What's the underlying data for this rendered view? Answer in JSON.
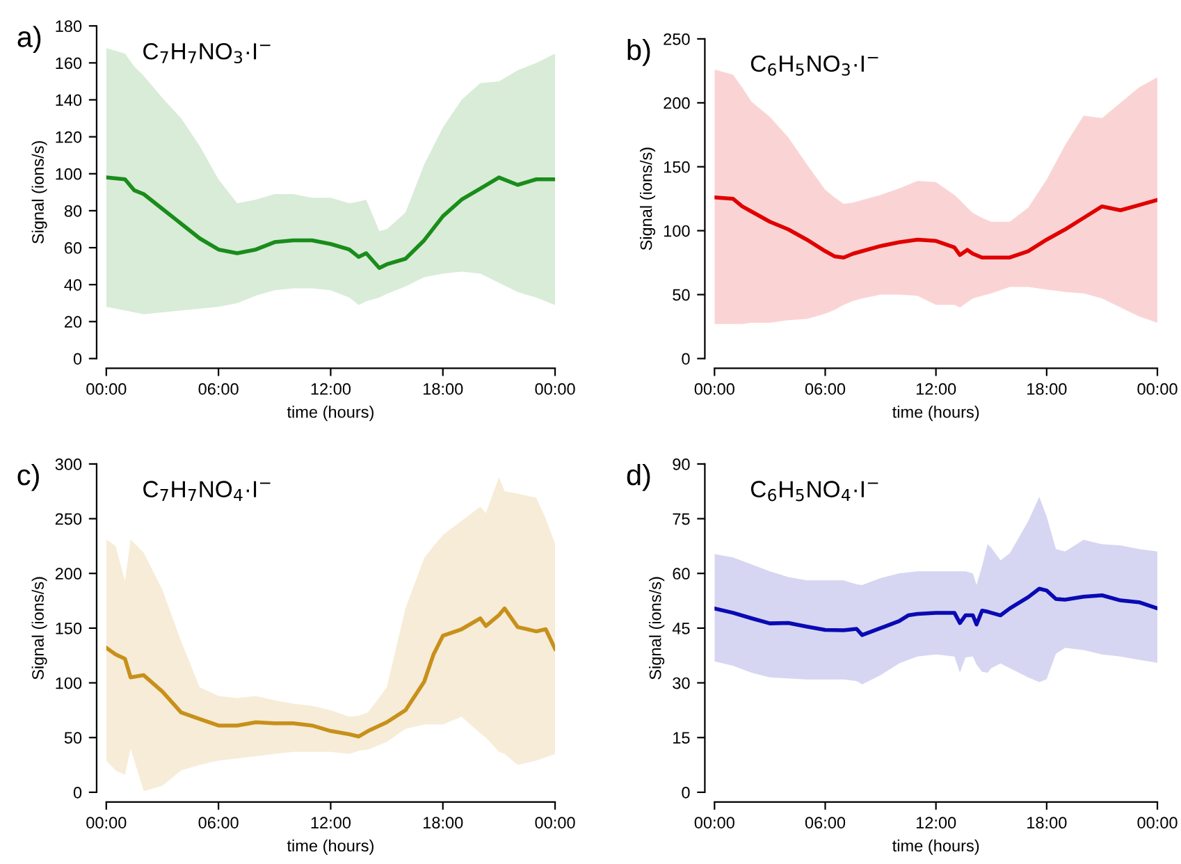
{
  "chart_data": [
    {
      "type": "line",
      "title": "C$_{7}$H$_{7}$NO$_{3}$·I$^{−}$",
      "xlabel": "time (hours)",
      "ylabel": "Signal (ions/s)",
      "annotations": [
        "a)"
      ],
      "x": [
        0,
        1,
        1.5,
        2,
        3,
        4,
        5,
        6,
        7,
        8,
        9,
        10,
        11,
        12,
        13,
        13.5,
        13.9,
        14.6,
        15,
        16,
        17,
        18,
        19,
        20,
        21,
        22,
        23,
        24
      ],
      "series": [
        {
          "color": "#1a8c1a",
          "values": [
            98,
            97,
            91,
            89,
            81,
            73,
            65,
            59,
            57,
            59,
            63,
            64,
            64,
            62,
            59,
            55,
            57,
            49,
            51,
            54,
            64,
            77,
            86,
            92,
            98,
            94,
            97,
            97
          ],
          "upper": [
            168,
            165,
            158,
            153,
            141,
            130,
            115,
            97,
            84,
            86,
            89,
            89,
            87,
            87,
            84,
            85,
            86,
            69,
            70,
            79,
            105,
            125,
            140,
            149,
            150,
            156,
            160,
            165
          ],
          "lower": [
            28,
            26,
            25,
            24,
            25,
            26,
            27,
            28,
            30,
            34,
            37,
            38,
            38,
            37,
            33,
            29,
            31,
            33,
            35,
            39,
            44,
            46,
            47,
            46,
            41,
            36,
            33,
            29
          ]
        }
      ],
      "xlim": [
        0,
        24
      ],
      "xticks": [
        {
          "value": 0,
          "label": "00:00"
        },
        {
          "value": 6,
          "label": "06:00"
        },
        {
          "value": 12,
          "label": "12:00"
        },
        {
          "value": 18,
          "label": "18:00"
        },
        {
          "value": 24,
          "label": "00:00"
        }
      ],
      "ylim": [
        0,
        180
      ],
      "yticks": [
        0,
        20,
        40,
        60,
        80,
        100,
        120,
        140,
        160,
        180
      ],
      "grid": false
    },
    {
      "type": "line",
      "title": "C$_{6}$H$_{5}$NO$_{3}$·I$^{−}$",
      "xlabel": "time (hours)",
      "ylabel": "Signal (ions/s)",
      "annotations": [
        "b)"
      ],
      "x": [
        0,
        1,
        1.5,
        2,
        3,
        4,
        5,
        6,
        6.5,
        7,
        7.5,
        8,
        9,
        10,
        11,
        12,
        13,
        13.3,
        13.7,
        14,
        14.5,
        15,
        16,
        17,
        18,
        19,
        20,
        21,
        22,
        23,
        24
      ],
      "series": [
        {
          "color": "#e00000",
          "values": [
            126,
            125,
            119,
            115,
            107,
            101,
            93,
            84,
            80,
            79,
            82,
            84,
            88,
            91,
            93,
            92,
            87,
            81,
            85,
            82,
            79,
            79,
            79,
            84,
            93,
            101,
            110,
            119,
            116,
            120,
            124
          ],
          "upper": [
            226,
            222,
            212,
            201,
            189,
            173,
            152,
            132,
            126,
            121,
            122,
            124,
            128,
            133,
            139,
            138,
            128,
            124,
            118,
            114,
            110,
            107,
            107,
            118,
            140,
            167,
            190,
            188,
            200,
            212,
            220
          ],
          "lower": [
            27,
            27,
            27,
            28,
            28,
            30,
            31,
            35,
            38,
            42,
            45,
            47,
            50,
            50,
            49,
            42,
            42,
            40,
            44,
            47,
            49,
            51,
            56,
            56,
            54,
            52,
            51,
            47,
            40,
            33,
            28
          ]
        }
      ],
      "xlim": [
        0,
        24
      ],
      "xticks": [
        {
          "value": 0,
          "label": "00:00"
        },
        {
          "value": 6,
          "label": "06:00"
        },
        {
          "value": 12,
          "label": "12:00"
        },
        {
          "value": 18,
          "label": "18:00"
        },
        {
          "value": 24,
          "label": "00:00"
        }
      ],
      "ylim": [
        0,
        250
      ],
      "yticks": [
        0,
        50,
        100,
        150,
        200,
        250
      ],
      "grid": false
    },
    {
      "type": "line",
      "title": "C$_{7}$H$_{7}$NO$_{4}$·I$^{−}$",
      "xlabel": "time (hours)",
      "ylabel": "Signal (ions/s)",
      "annotations": [
        "c)"
      ],
      "x": [
        0,
        0.5,
        1,
        1.3,
        2,
        3,
        4,
        5,
        6,
        7,
        8,
        9,
        10,
        11,
        12,
        13,
        13.5,
        14,
        15,
        16,
        17,
        17.5,
        18,
        19,
        20,
        20.3,
        21,
        21.3,
        22,
        23,
        23.5,
        24
      ],
      "series": [
        {
          "color": "#c8901a",
          "values": [
            132,
            126,
            122,
            105,
            107,
            92,
            73,
            67,
            61,
            61,
            64,
            63,
            63,
            61,
            56,
            53,
            51,
            56,
            64,
            75,
            101,
            126,
            143,
            149,
            159,
            152,
            162,
            168,
            151,
            147,
            149,
            131
          ],
          "upper": [
            231,
            225,
            193,
            231,
            219,
            185,
            138,
            96,
            88,
            86,
            88,
            84,
            81,
            79,
            75,
            69,
            70,
            73,
            96,
            168,
            214,
            225,
            235,
            248,
            261,
            255,
            288,
            275,
            273,
            269,
            250,
            227
          ],
          "lower": [
            29,
            20,
            16,
            40,
            1,
            6,
            20,
            25,
            29,
            31,
            33,
            35,
            37,
            37,
            37,
            35,
            38,
            39,
            46,
            58,
            62,
            62,
            62,
            69,
            54,
            50,
            37,
            35,
            25,
            29,
            32,
            35
          ]
        }
      ],
      "xlim": [
        0,
        24
      ],
      "xticks": [
        {
          "value": 0,
          "label": "00:00"
        },
        {
          "value": 6,
          "label": "06:00"
        },
        {
          "value": 12,
          "label": "12:00"
        },
        {
          "value": 18,
          "label": "18:00"
        },
        {
          "value": 24,
          "label": "00:00"
        }
      ],
      "ylim": [
        0,
        300
      ],
      "yticks": [
        0,
        50,
        100,
        150,
        200,
        250,
        300
      ],
      "grid": false
    },
    {
      "type": "line",
      "title": "C$_{6}$H$_{5}$NO$_{4}$·I$^{−}$",
      "xlabel": "time (hours)",
      "ylabel": "Signal (ions/s)",
      "annotations": [
        "d)"
      ],
      "x": [
        0,
        1,
        2,
        3,
        4,
        5,
        6,
        7,
        7.7,
        8,
        9,
        10,
        10.5,
        11,
        12,
        13,
        13.3,
        13.6,
        14,
        14.2,
        14.5,
        14.8,
        15,
        15.5,
        16,
        17,
        17.6,
        18,
        18.5,
        19,
        20,
        21,
        22,
        23,
        24
      ],
      "series": [
        {
          "color": "#0a0ab4",
          "values": [
            50.4,
            49.2,
            47.7,
            46.3,
            46.4,
            45.4,
            44.5,
            44.4,
            44.8,
            43.1,
            45,
            46.9,
            48.5,
            48.9,
            49.2,
            49.2,
            46.4,
            48.5,
            48.5,
            46,
            49.8,
            49.5,
            49.2,
            48.5,
            50.4,
            53.5,
            55.8,
            55.3,
            53,
            52.8,
            53.6,
            54,
            52.6,
            52.1,
            50.4
          ],
          "upper": [
            65.3,
            64.4,
            62.5,
            60.6,
            59,
            58.1,
            58.1,
            58.1,
            57,
            56.8,
            58.7,
            60,
            60.3,
            60.6,
            60.6,
            60.6,
            60.6,
            60.6,
            60,
            56.8,
            62,
            68,
            67,
            63.6,
            65.5,
            74.3,
            81,
            75.6,
            66.7,
            66,
            69.2,
            68,
            67.7,
            66.7,
            66
          ],
          "lower": [
            35.9,
            34.7,
            32.8,
            31.5,
            31.2,
            30.9,
            30.9,
            30.9,
            30.5,
            29.6,
            32.1,
            35.3,
            36.3,
            37.2,
            37.8,
            37.2,
            32.8,
            37,
            37.2,
            35,
            33,
            32.8,
            34,
            35.3,
            34,
            31.5,
            30.2,
            31,
            38,
            39.6,
            39,
            37.8,
            37.2,
            36.3,
            35.5
          ]
        }
      ],
      "xlim": [
        0,
        24
      ],
      "xticks": [
        {
          "value": 0,
          "label": "00:00"
        },
        {
          "value": 6,
          "label": "06:00"
        },
        {
          "value": 12,
          "label": "12:00"
        },
        {
          "value": 18,
          "label": "18:00"
        },
        {
          "value": 24,
          "label": "00:00"
        }
      ],
      "ylim": [
        0,
        90
      ],
      "yticks": [
        0,
        15,
        30,
        45,
        60,
        75,
        90
      ],
      "grid": false
    }
  ]
}
